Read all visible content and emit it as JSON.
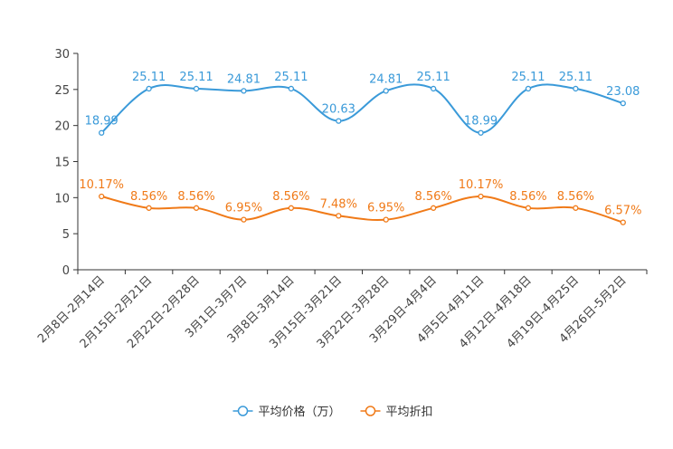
{
  "chart_data": {
    "type": "line",
    "title": "",
    "xlabel": "",
    "ylabel": "",
    "ylim": [
      0,
      30
    ],
    "yticks": [
      0,
      5,
      10,
      15,
      20,
      25,
      30
    ],
    "grid": false,
    "legend_position": "bottom",
    "categories": [
      "2月8日-2月14日",
      "2月15日-2月21日",
      "2月22日-2月28日",
      "3月1日-3月7日",
      "3月8日-3月14日",
      "3月15日-3月21日",
      "3月22日-3月28日",
      "3月29日-4月4日",
      "4月5日-4月11日",
      "4月12日-4月18日",
      "4月19日-4月25日",
      "4月26日-5月2日"
    ],
    "series": [
      {
        "name": "平均价格（万）",
        "color": "#3a9ad9",
        "values": [
          18.99,
          25.11,
          25.11,
          24.81,
          25.11,
          20.63,
          24.81,
          25.11,
          18.99,
          25.11,
          25.11,
          23.08
        ],
        "labels": [
          "18.99",
          "25.11",
          "25.11",
          "24.81",
          "25.11",
          "20.63",
          "24.81",
          "25.11",
          "18.99",
          "25.11",
          "25.11",
          "23.08"
        ]
      },
      {
        "name": "平均折扣",
        "color": "#f07a18",
        "values": [
          10.17,
          8.56,
          8.56,
          6.95,
          8.56,
          7.48,
          6.95,
          8.56,
          10.17,
          8.56,
          8.56,
          6.57
        ],
        "labels": [
          "10.17%",
          "8.56%",
          "8.56%",
          "6.95%",
          "8.56%",
          "7.48%",
          "6.95%",
          "8.56%",
          "10.17%",
          "8.56%",
          "8.56%",
          "6.57%"
        ]
      }
    ]
  }
}
